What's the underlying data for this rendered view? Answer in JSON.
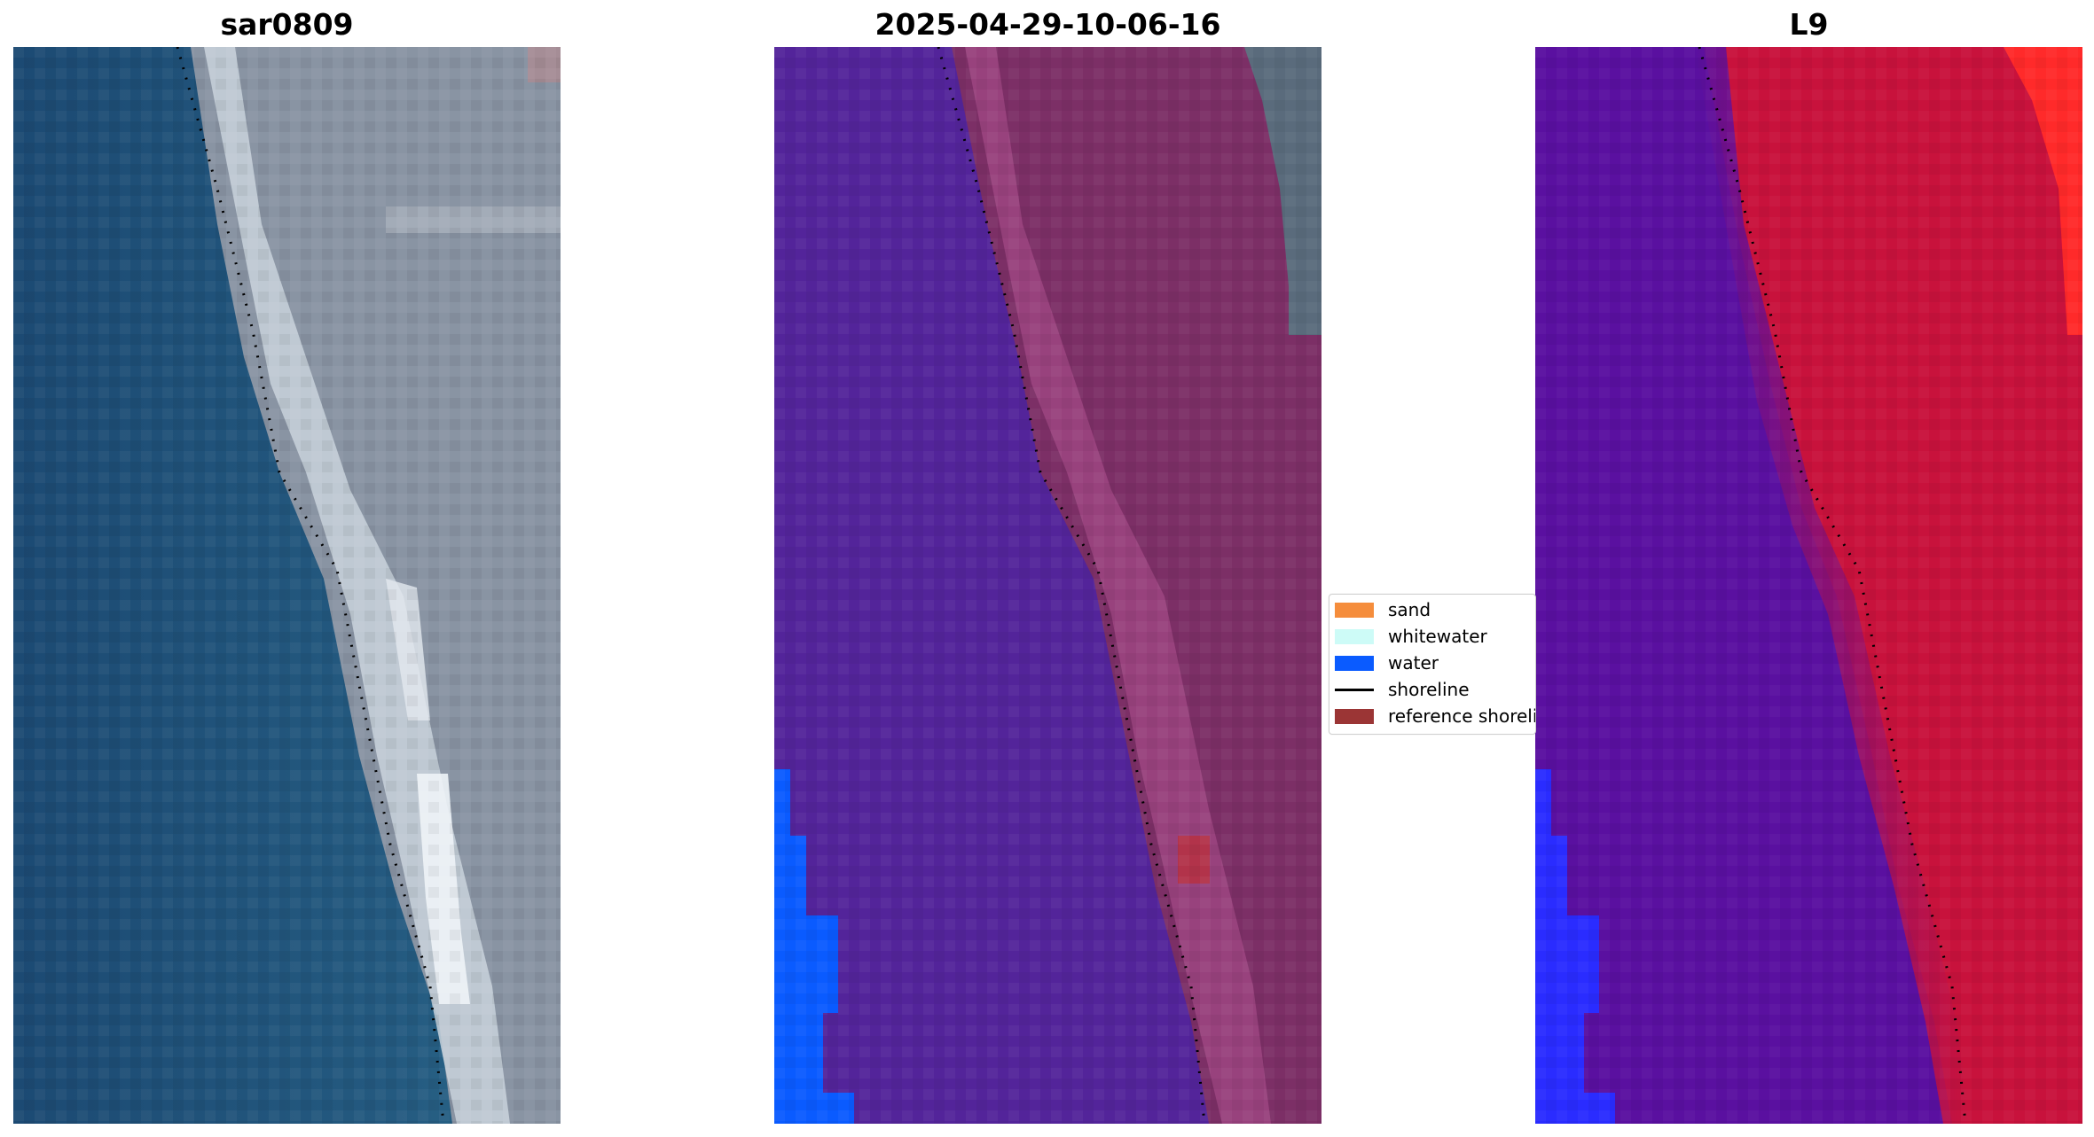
{
  "panels": [
    {
      "title": "sar0809"
    },
    {
      "title": "2025-04-29-10-06-16"
    },
    {
      "title": "L9"
    }
  ],
  "legend": {
    "items": [
      {
        "label": "sand",
        "kind": "patch",
        "color": "#f58d3c"
      },
      {
        "label": "whitewater",
        "kind": "patch",
        "color": "#cdfbf7"
      },
      {
        "label": "water",
        "kind": "patch",
        "color": "#0a5bff"
      },
      {
        "label": "shoreline",
        "kind": "line",
        "color": "#000000"
      },
      {
        "label": "reference shoreline",
        "kind": "patch",
        "color": "#9b3535"
      }
    ]
  },
  "colors": {
    "rgb_water": "#1f4f78",
    "rgb_land": "#8e9aa8",
    "rgb_beach": "#dfe6ee",
    "class_water": "#53249a",
    "class_land": "#7c2f66",
    "class_water_blue": "#0a5bff",
    "ndwi_water": "#5a10a0",
    "ndwi_land": "#c8123c",
    "ndwi_blue": "#2a2cff"
  }
}
